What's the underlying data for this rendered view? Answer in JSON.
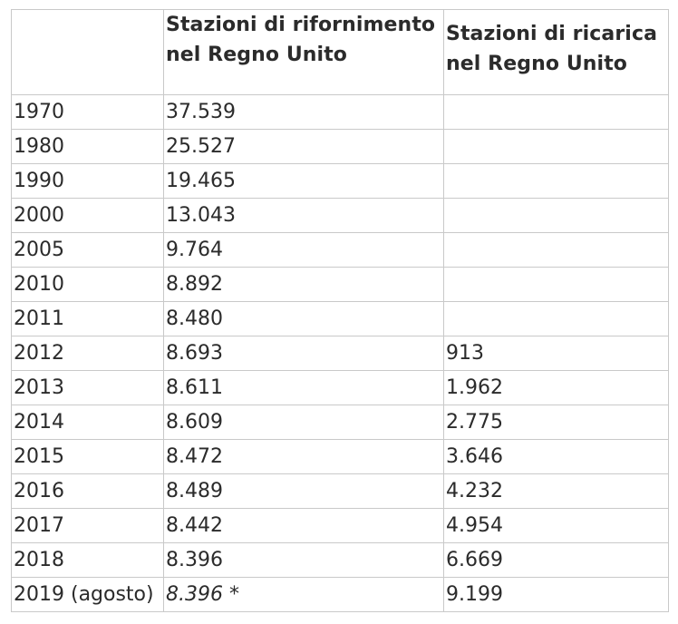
{
  "table": {
    "headers": [
      "",
      "Stazioni di rifornimento\nnel Regno Unito",
      "Stazioni di ricarica\nnel Regno Unito"
    ],
    "rows": [
      {
        "year": "1970",
        "fuel": "37.539",
        "charge": ""
      },
      {
        "year": "1980",
        "fuel": "25.527",
        "charge": ""
      },
      {
        "year": "1990",
        "fuel": "19.465",
        "charge": ""
      },
      {
        "year": "2000",
        "fuel": "13.043",
        "charge": ""
      },
      {
        "year": "2005",
        "fuel": "9.764",
        "charge": ""
      },
      {
        "year": "2010",
        "fuel": "8.892",
        "charge": ""
      },
      {
        "year": "2011",
        "fuel": "8.480",
        "charge": ""
      },
      {
        "year": "2012",
        "fuel": "8.693",
        "charge": "913"
      },
      {
        "year": "2013",
        "fuel": "8.611",
        "charge": "1.962"
      },
      {
        "year": "2014",
        "fuel": "8.609",
        "charge": "2.775"
      },
      {
        "year": "2015",
        "fuel": "8.472",
        "charge": "3.646"
      },
      {
        "year": "2016",
        "fuel": "8.489",
        "charge": "4.232"
      },
      {
        "year": "2017",
        "fuel": "8.442",
        "charge": "4.954"
      },
      {
        "year": "2018",
        "fuel": "8.396",
        "charge": "6.669"
      },
      {
        "year": "2019 (agosto)",
        "fuel": "8.396",
        "fuel_note": " *",
        "fuel_italic": true,
        "charge": "9.199"
      }
    ]
  }
}
